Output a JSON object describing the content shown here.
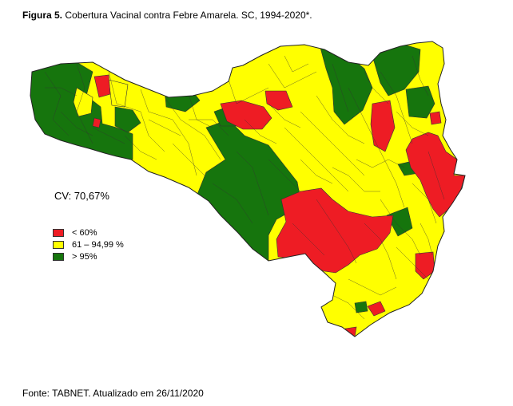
{
  "caption": {
    "label": "Figura 5.",
    "text": "Cobertura Vacinal contra Febre Amarela. SC, 1994-2020*."
  },
  "coverage": "CV: 70,67%",
  "legend": [
    {
      "label": "< 60%",
      "color": "#ee1c24"
    },
    {
      "label": "61 – 94,99 %",
      "color": "#ffff00"
    },
    {
      "label": "> 95%",
      "color": "#16750d"
    }
  ],
  "source": "Fonte: TABNET. Atualizado em 26/11/2020",
  "colors": {
    "red": "#ee1c24",
    "yellow": "#ffff00",
    "green": "#16750d",
    "border": "#333333"
  }
}
